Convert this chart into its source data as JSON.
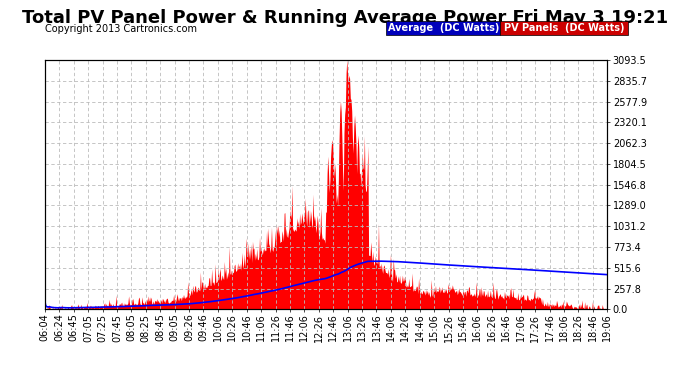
{
  "title": "Total PV Panel Power & Running Average Power Fri May 3 19:21",
  "copyright": "Copyright 2013 Cartronics.com",
  "ylabel_right_ticks": [
    0.0,
    257.8,
    515.6,
    773.4,
    1031.2,
    1289.0,
    1546.8,
    1804.5,
    2062.3,
    2320.1,
    2577.9,
    2835.7,
    3093.5
  ],
  "ymax": 3093.5,
  "ymin": 0.0,
  "background_color": "#ffffff",
  "plot_bg_color": "#ffffff",
  "grid_color": "#aaaaaa",
  "pv_color": "#ff0000",
  "avg_color": "#0000ff",
  "title_fontsize": 13,
  "copyright_fontsize": 7,
  "tick_fontsize": 7,
  "x_tick_labels": [
    "06:04",
    "06:24",
    "06:45",
    "07:05",
    "07:25",
    "07:45",
    "08:05",
    "08:25",
    "08:45",
    "09:05",
    "09:26",
    "09:46",
    "10:06",
    "10:26",
    "10:46",
    "11:06",
    "11:26",
    "11:46",
    "12:06",
    "12:26",
    "12:46",
    "13:06",
    "13:26",
    "13:46",
    "14:06",
    "14:26",
    "14:46",
    "15:06",
    "15:26",
    "15:46",
    "16:06",
    "16:26",
    "16:46",
    "17:06",
    "17:26",
    "17:46",
    "18:06",
    "18:26",
    "18:46",
    "19:06"
  ]
}
